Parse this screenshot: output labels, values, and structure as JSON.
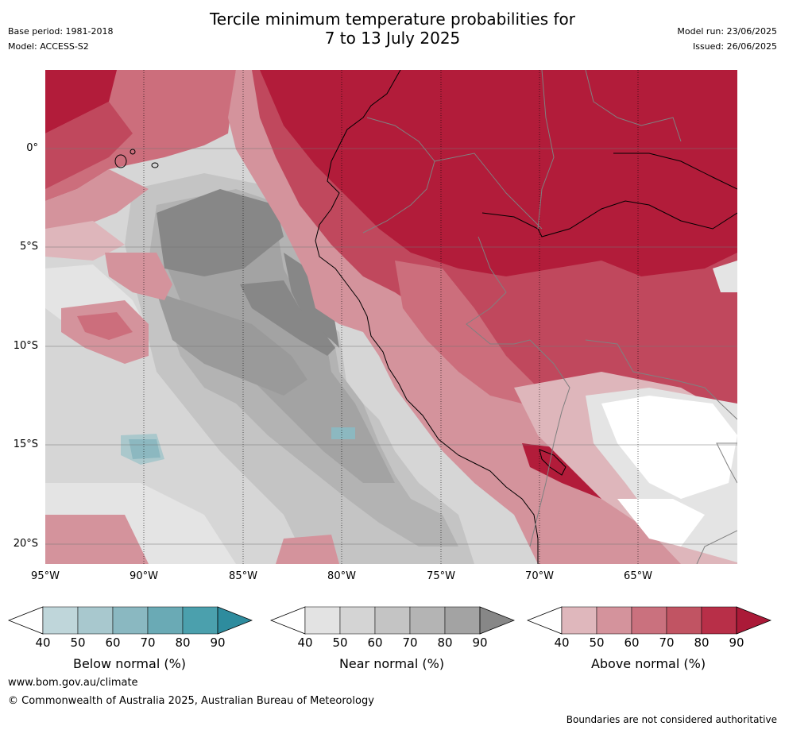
{
  "header": {
    "title_line1": "Tercile minimum temperature probabilities for",
    "title_line2": "7 to 13 July 2025",
    "base_period": "Base period: 1981-2018",
    "model": "Model: ACCESS-S2",
    "model_run": "Model run: 23/06/2025",
    "issued": "Issued: 26/06/2025"
  },
  "map": {
    "region": "Western South America and eastern Pacific Ocean",
    "lat_labels": [
      "0°",
      "5°S",
      "10°S",
      "15°S",
      "20°S"
    ],
    "lon_labels": [
      "95°W",
      "90°W",
      "85°W",
      "80°W",
      "75°W",
      "70°W",
      "65°W"
    ],
    "colors": {
      "above_90": "#b21c3a",
      "above_80": "#c0485d",
      "above_70": "#cc6e7c",
      "above_60": "#d4939c",
      "above_50": "#deb6bb",
      "near_40": "#e4e4e4",
      "near_50": "#d6d6d6",
      "near_60": "#c6c6c6",
      "near_70": "#b5b5b5",
      "near_80": "#a3a3a3",
      "near_90": "#878787",
      "below_50": "#aac8cc",
      "below_60": "#8cb8c0"
    }
  },
  "legends": [
    {
      "label": "Below normal (%)",
      "ticks": [
        "40",
        "50",
        "60",
        "70",
        "80",
        "90"
      ],
      "colors": [
        "#bfd6da",
        "#a8c8ce",
        "#8ab8c1",
        "#6aaab5",
        "#4ba0ad",
        "#2e8c9e"
      ]
    },
    {
      "label": "Near normal (%)",
      "ticks": [
        "40",
        "50",
        "60",
        "70",
        "80",
        "90"
      ],
      "colors": [
        "#e3e3e3",
        "#d4d4d4",
        "#c4c4c4",
        "#b4b4b4",
        "#a3a3a3",
        "#878787"
      ]
    },
    {
      "label": "Above normal (%)",
      "ticks": [
        "40",
        "50",
        "60",
        "70",
        "80",
        "90"
      ],
      "colors": [
        "#dfb7bc",
        "#d4939c",
        "#ca717e",
        "#c15463",
        "#b82f48",
        "#ab1a38"
      ]
    }
  ],
  "footer": {
    "website": "www.bom.gov.au/climate",
    "copyright": "© Commonwealth of Australia 2025, Australian Bureau of Meteorology",
    "disclaimer": "Boundaries are not considered authoritative"
  }
}
